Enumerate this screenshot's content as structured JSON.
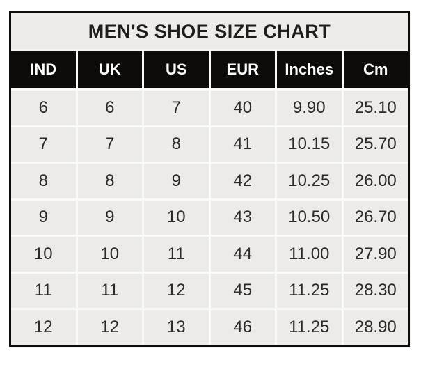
{
  "title": "MEN'S SHOE SIZE CHART",
  "colors": {
    "page_bg": "#ffffff",
    "table_border": "#0e0d0b",
    "title_bg": "#edecea",
    "title_text": "#1e1d1b",
    "header_bg": "#0d0c0a",
    "header_text": "#fcfcfc",
    "cell_bg": "#edebe9",
    "cell_text": "#2c2b29",
    "gridline": "#fafaf8"
  },
  "chart_data": {
    "type": "table",
    "title": "MEN'S SHOE SIZE CHART",
    "columns": [
      "IND",
      "UK",
      "US",
      "EUR",
      "Inches",
      "Cm"
    ],
    "rows": [
      [
        "6",
        "6",
        "7",
        "40",
        "9.90",
        "25.10"
      ],
      [
        "7",
        "7",
        "8",
        "41",
        "10.15",
        "25.70"
      ],
      [
        "8",
        "8",
        "9",
        "42",
        "10.25",
        "26.00"
      ],
      [
        "9",
        "9",
        "10",
        "43",
        "10.50",
        "26.70"
      ],
      [
        "10",
        "10",
        "11",
        "44",
        "11.00",
        "27.90"
      ],
      [
        "11",
        "11",
        "12",
        "45",
        "11.25",
        "28.30"
      ],
      [
        "12",
        "12",
        "13",
        "46",
        "11.25",
        "28.90"
      ]
    ]
  }
}
